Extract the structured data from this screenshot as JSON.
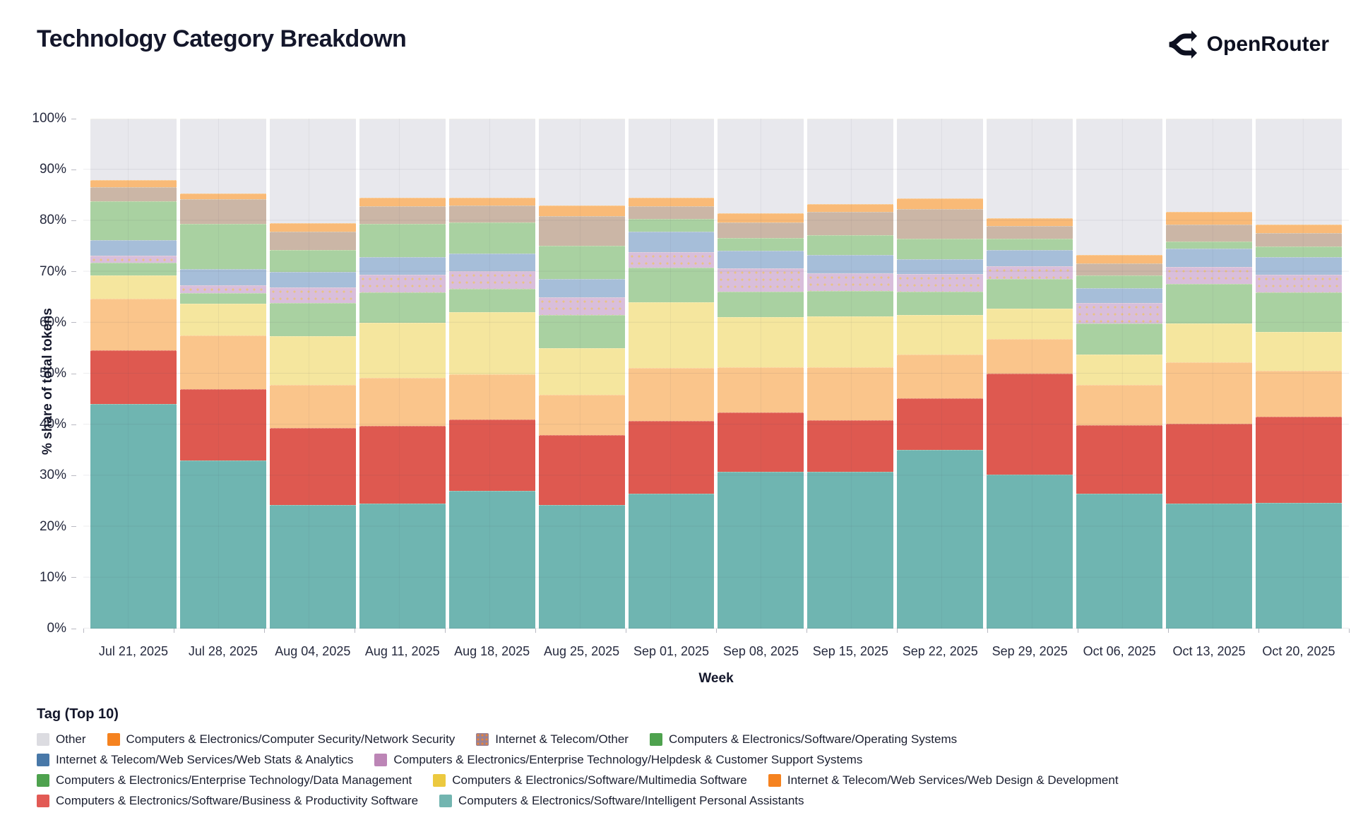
{
  "header": {
    "title": "Technology Category Breakdown",
    "brand": "OpenRouter"
  },
  "chart_data": {
    "type": "bar",
    "stacked": true,
    "title": "Technology Category Breakdown",
    "xlabel": "Week",
    "ylabel": "% share of total tokens",
    "ylim": [
      0,
      100
    ],
    "grid": true,
    "y_ticks": [
      "0%",
      "10%",
      "20%",
      "30%",
      "40%",
      "50%",
      "60%",
      "70%",
      "80%",
      "90%",
      "100%"
    ],
    "categories": [
      "Jul 21, 2025",
      "Jul 28, 2025",
      "Aug 04, 2025",
      "Aug 11, 2025",
      "Aug 18, 2025",
      "Aug 25, 2025",
      "Sep 01, 2025",
      "Sep 08, 2025",
      "Sep 15, 2025",
      "Sep 22, 2025",
      "Sep 29, 2025",
      "Oct 06, 2025",
      "Oct 13, 2025",
      "Oct 20, 2025"
    ],
    "stacking_note": "series listed top-of-stack first; bars render top-to-bottom in this order",
    "series": [
      {
        "name": "Other",
        "legend_color": "#dcdce1",
        "bar_color": "#e8e8ed",
        "values": [
          12.0,
          14.7,
          20.5,
          15.5,
          15.5,
          17.1,
          15.5,
          18.5,
          16.8,
          15.7,
          19.5,
          26.8,
          18.3,
          20.8
        ]
      },
      {
        "name": "Computers & Electronics/Computer Security/Network Security",
        "legend_color": "#f5821f",
        "bar_color": "#f9ba77",
        "values": [
          1.4,
          1.1,
          1.6,
          1.7,
          1.6,
          2.0,
          1.7,
          1.9,
          1.5,
          2.0,
          1.5,
          1.6,
          2.5,
          1.7
        ]
      },
      {
        "name": "Internet & Telecom/Other",
        "legend_color": "#9c8191",
        "legend_pattern": "dots",
        "bar_color": "#cbb6a6",
        "values": [
          2.8,
          4.9,
          3.6,
          3.5,
          3.3,
          5.9,
          2.5,
          3.0,
          4.5,
          5.8,
          2.5,
          2.3,
          3.3,
          2.6
        ]
      },
      {
        "name": "Computers & Electronics/Software/Operating Systems",
        "legend_color": "#4ea24e",
        "bar_color": "#a9d1a1",
        "values": [
          7.6,
          8.8,
          4.4,
          6.4,
          6.0,
          6.5,
          2.5,
          2.5,
          4.0,
          4.0,
          2.3,
          2.5,
          1.4,
          2.0
        ]
      },
      {
        "name": "Internet & Telecom/Web Services/Web Stats & Analytics",
        "legend_color": "#4878a8",
        "bar_color": "#a6bed9",
        "values": [
          3.1,
          3.2,
          3.0,
          3.5,
          3.5,
          3.5,
          4.0,
          3.5,
          3.5,
          3.0,
          3.2,
          3.0,
          3.6,
          3.5
        ]
      },
      {
        "name": "Computers & Electronics/Enterprise Technology/Helpdesk & Customer Support Systems",
        "legend_color": "#bc85b6",
        "bar_color": "#d9bedb",
        "bar_pattern": "dots",
        "values": [
          1.4,
          1.5,
          3.1,
          3.5,
          3.5,
          3.5,
          3.0,
          4.5,
          3.5,
          3.5,
          2.5,
          4.0,
          3.3,
          3.5
        ]
      },
      {
        "name": "Computers & Electronics/Enterprise Technology/Data Management",
        "legend_color": "#4ea24e",
        "bar_color": "#a9d1a1",
        "values": [
          2.4,
          2.1,
          6.5,
          6.0,
          4.6,
          6.5,
          6.8,
          5.0,
          5.0,
          4.5,
          5.7,
          6.0,
          7.8,
          7.8
        ]
      },
      {
        "name": "Computers & Electronics/Software/Multimedia Software",
        "legend_color": "#ecc93f",
        "bar_color": "#f5e69e",
        "values": [
          4.6,
          6.2,
          9.5,
          10.7,
          12.2,
          9.2,
          12.9,
          9.8,
          10.0,
          7.8,
          6.0,
          6.0,
          7.6,
          7.5
        ]
      },
      {
        "name": "Internet & Telecom/Web Services/Web Design & Development",
        "legend_color": "#f5821f",
        "bar_color": "#fac58b",
        "values": [
          10.2,
          10.5,
          8.5,
          9.4,
          8.8,
          7.8,
          10.4,
          8.9,
          10.3,
          8.5,
          6.8,
          7.9,
          12.0,
          9.0
        ]
      },
      {
        "name": "Computers & Electronics/Software/Business & Productivity Software",
        "legend_color": "#e25a55",
        "bar_color": "#de5950",
        "values": [
          10.5,
          14.0,
          15.1,
          15.3,
          14.0,
          13.7,
          14.2,
          11.7,
          10.2,
          10.2,
          19.8,
          13.4,
          15.7,
          16.9
        ]
      },
      {
        "name": "Computers & Electronics/Software/Intelligent Personal Assistants",
        "legend_color": "#72b5b0",
        "bar_color": "#6fb5b1",
        "values": [
          44.0,
          33.0,
          24.2,
          24.5,
          27.0,
          24.3,
          26.5,
          30.7,
          30.7,
          35.0,
          30.2,
          26.5,
          24.5,
          24.7
        ]
      }
    ],
    "legend_position": "bottom"
  },
  "legend": {
    "title": "Tag (Top 10)",
    "rows": [
      [
        0,
        1,
        2,
        3
      ],
      [
        4,
        5
      ],
      [
        6,
        7,
        8
      ],
      [
        9,
        10
      ]
    ]
  }
}
